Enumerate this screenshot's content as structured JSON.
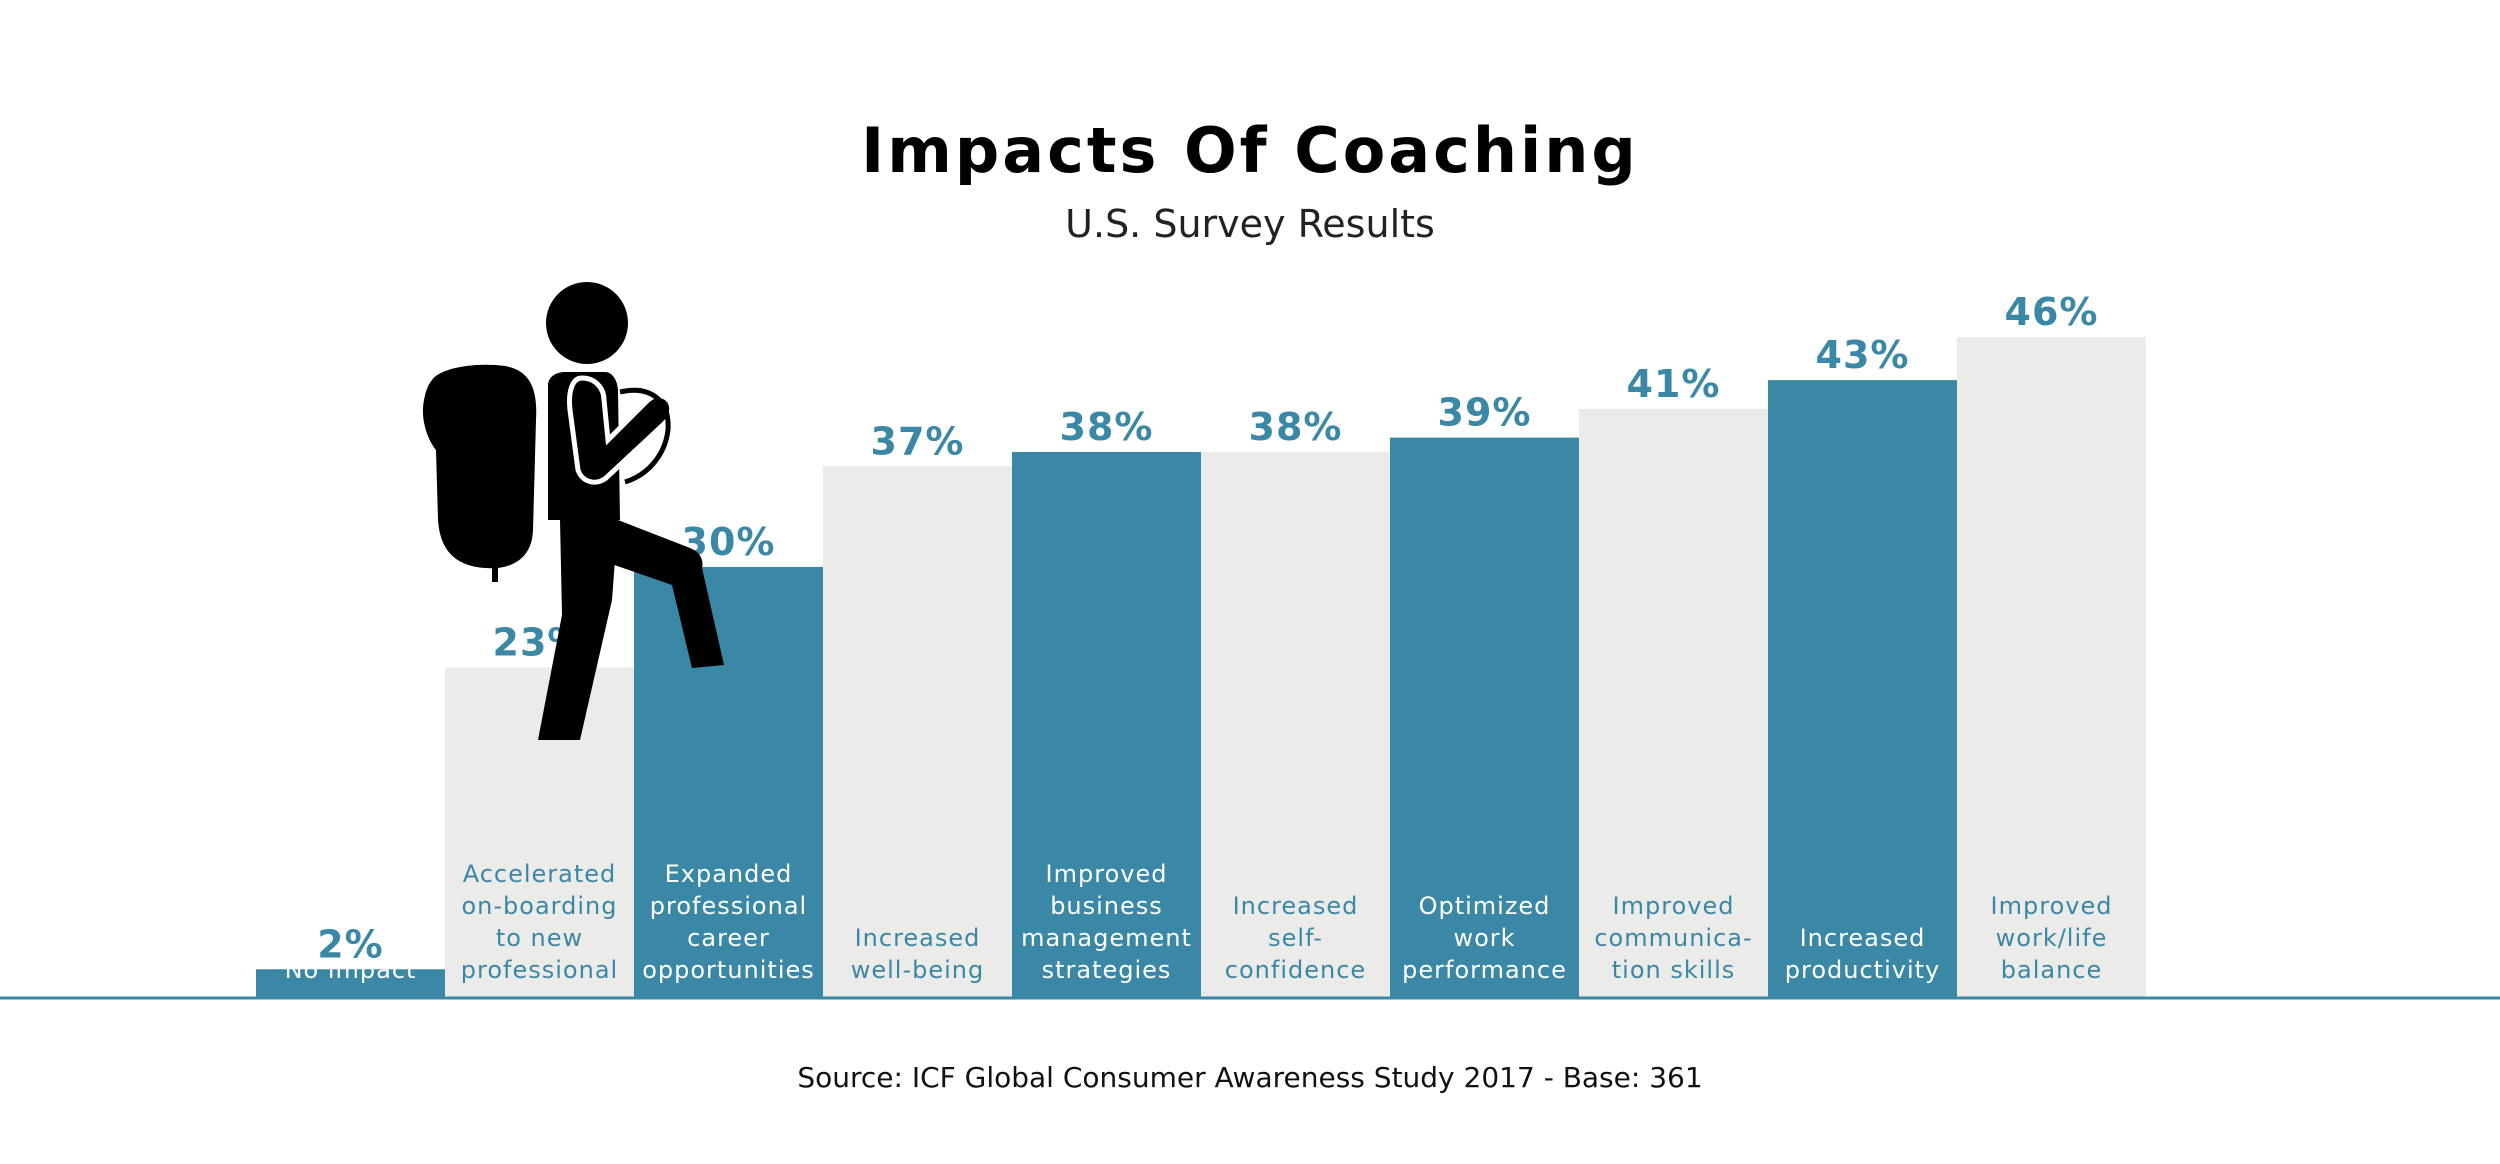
{
  "chart_data": {
    "type": "bar",
    "title": "Impacts Of Coaching",
    "subtitle": "U.S. Survey Results",
    "source": "Source: ICF Global Consumer Awareness Study 2017 - Base: 361",
    "xlabel": "",
    "ylabel": "",
    "ylim": [
      0,
      46
    ],
    "value_suffix": "%",
    "grid": false,
    "categories": [
      "No impact",
      "Accelerated on-boarding to new professional",
      "Expanded professional career opportunities",
      "Increased well-being",
      "Improved business management strategies",
      "Increased self-confidence",
      "Optimized work performance",
      "Improved communica- tion skills",
      "Increased productivity",
      "Improved work/life balance"
    ],
    "category_lines": [
      [
        "No impact"
      ],
      [
        "Accelerated",
        "on-boarding",
        "to new",
        "professional"
      ],
      [
        "Expanded",
        "professional",
        "career",
        "opportunities"
      ],
      [
        "Increased",
        "well-being"
      ],
      [
        "Improved",
        "business",
        "management",
        "strategies"
      ],
      [
        "Increased",
        "self-",
        "confidence"
      ],
      [
        "Optimized",
        "work",
        "performance"
      ],
      [
        "Improved",
        "communica-",
        "tion skills"
      ],
      [
        "Increased",
        "productivity"
      ],
      [
        "Improved",
        "work/life",
        "balance"
      ]
    ],
    "values": [
      2,
      23,
      30,
      37,
      38,
      38,
      39,
      41,
      43,
      46
    ],
    "bar_colors": [
      "#3b87a6",
      "#ebebe9",
      "#3b87a6",
      "#ebebe9",
      "#3b87a6",
      "#ebebe9",
      "#3b87a6",
      "#ebebe9",
      "#3b87a6",
      "#ebebe9"
    ],
    "label_colors_on_bar": [
      "#ffffff",
      "#3b87a6",
      "#ffffff",
      "#3b87a6",
      "#ffffff",
      "#3b87a6",
      "#ffffff",
      "#3b87a6",
      "#ffffff",
      "#3b87a6"
    ]
  },
  "colors": {
    "accent": "#3b87a6",
    "light_bar": "#ebebe9",
    "baseline": "#3b87a6",
    "hiker": "#000000"
  },
  "illustration": "hiker-icon"
}
